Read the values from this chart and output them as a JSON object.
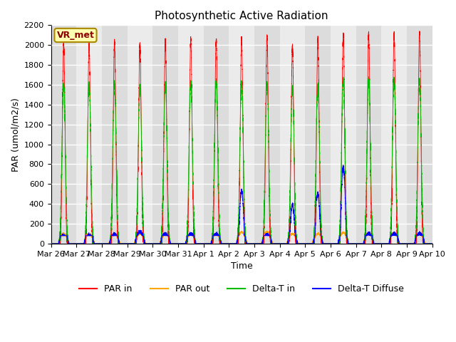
{
  "title": "Photosynthetic Active Radiation",
  "xlabel": "Time",
  "ylabel": "PAR (umol/m2/s)",
  "ylim": [
    0,
    2200
  ],
  "label_box": "VR_met",
  "series_labels": [
    "PAR in",
    "PAR out",
    "Delta-T in",
    "Delta-T Diffuse"
  ],
  "series_colors": [
    "#ff0000",
    "#ffa500",
    "#00bb00",
    "#0000ff"
  ],
  "bg_even": "#dcdcdc",
  "bg_odd": "#ebebeb",
  "grid_color": "#ffffff",
  "x_tick_labels": [
    "Mar 26",
    "Mar 27",
    "Mar 28",
    "Mar 29",
    "Mar 30",
    "Mar 31",
    "Apr 1",
    "Apr 2",
    "Apr 3",
    "Apr 4",
    "Apr 5",
    "Apr 6",
    "Apr 7",
    "Apr 8",
    "Apr 9",
    "Apr 10"
  ],
  "n_days": 15,
  "par_in_peaks": [
    2020,
    2005,
    2035,
    2010,
    2045,
    2050,
    2050,
    2070,
    2090,
    1970,
    2065,
    2110,
    2115,
    2115,
    2120
  ],
  "par_out_peaks": [
    100,
    100,
    100,
    100,
    100,
    100,
    100,
    115,
    120,
    100,
    100,
    110,
    110,
    110,
    110
  ],
  "delta_t_in_peaks": [
    1600,
    1600,
    1600,
    1580,
    1605,
    1625,
    1635,
    1620,
    1615,
    1570,
    1590,
    1650,
    1650,
    1650,
    1655
  ],
  "delta_t_diffuse_normal": [
    80,
    80,
    90,
    120,
    95,
    95,
    95,
    95,
    90,
    80,
    85,
    100,
    100,
    100,
    100
  ],
  "special_days": [
    7,
    9,
    10,
    11
  ],
  "special_peaks": [
    540,
    390,
    510,
    780
  ],
  "special_secondary": [
    260,
    0,
    460,
    600
  ]
}
